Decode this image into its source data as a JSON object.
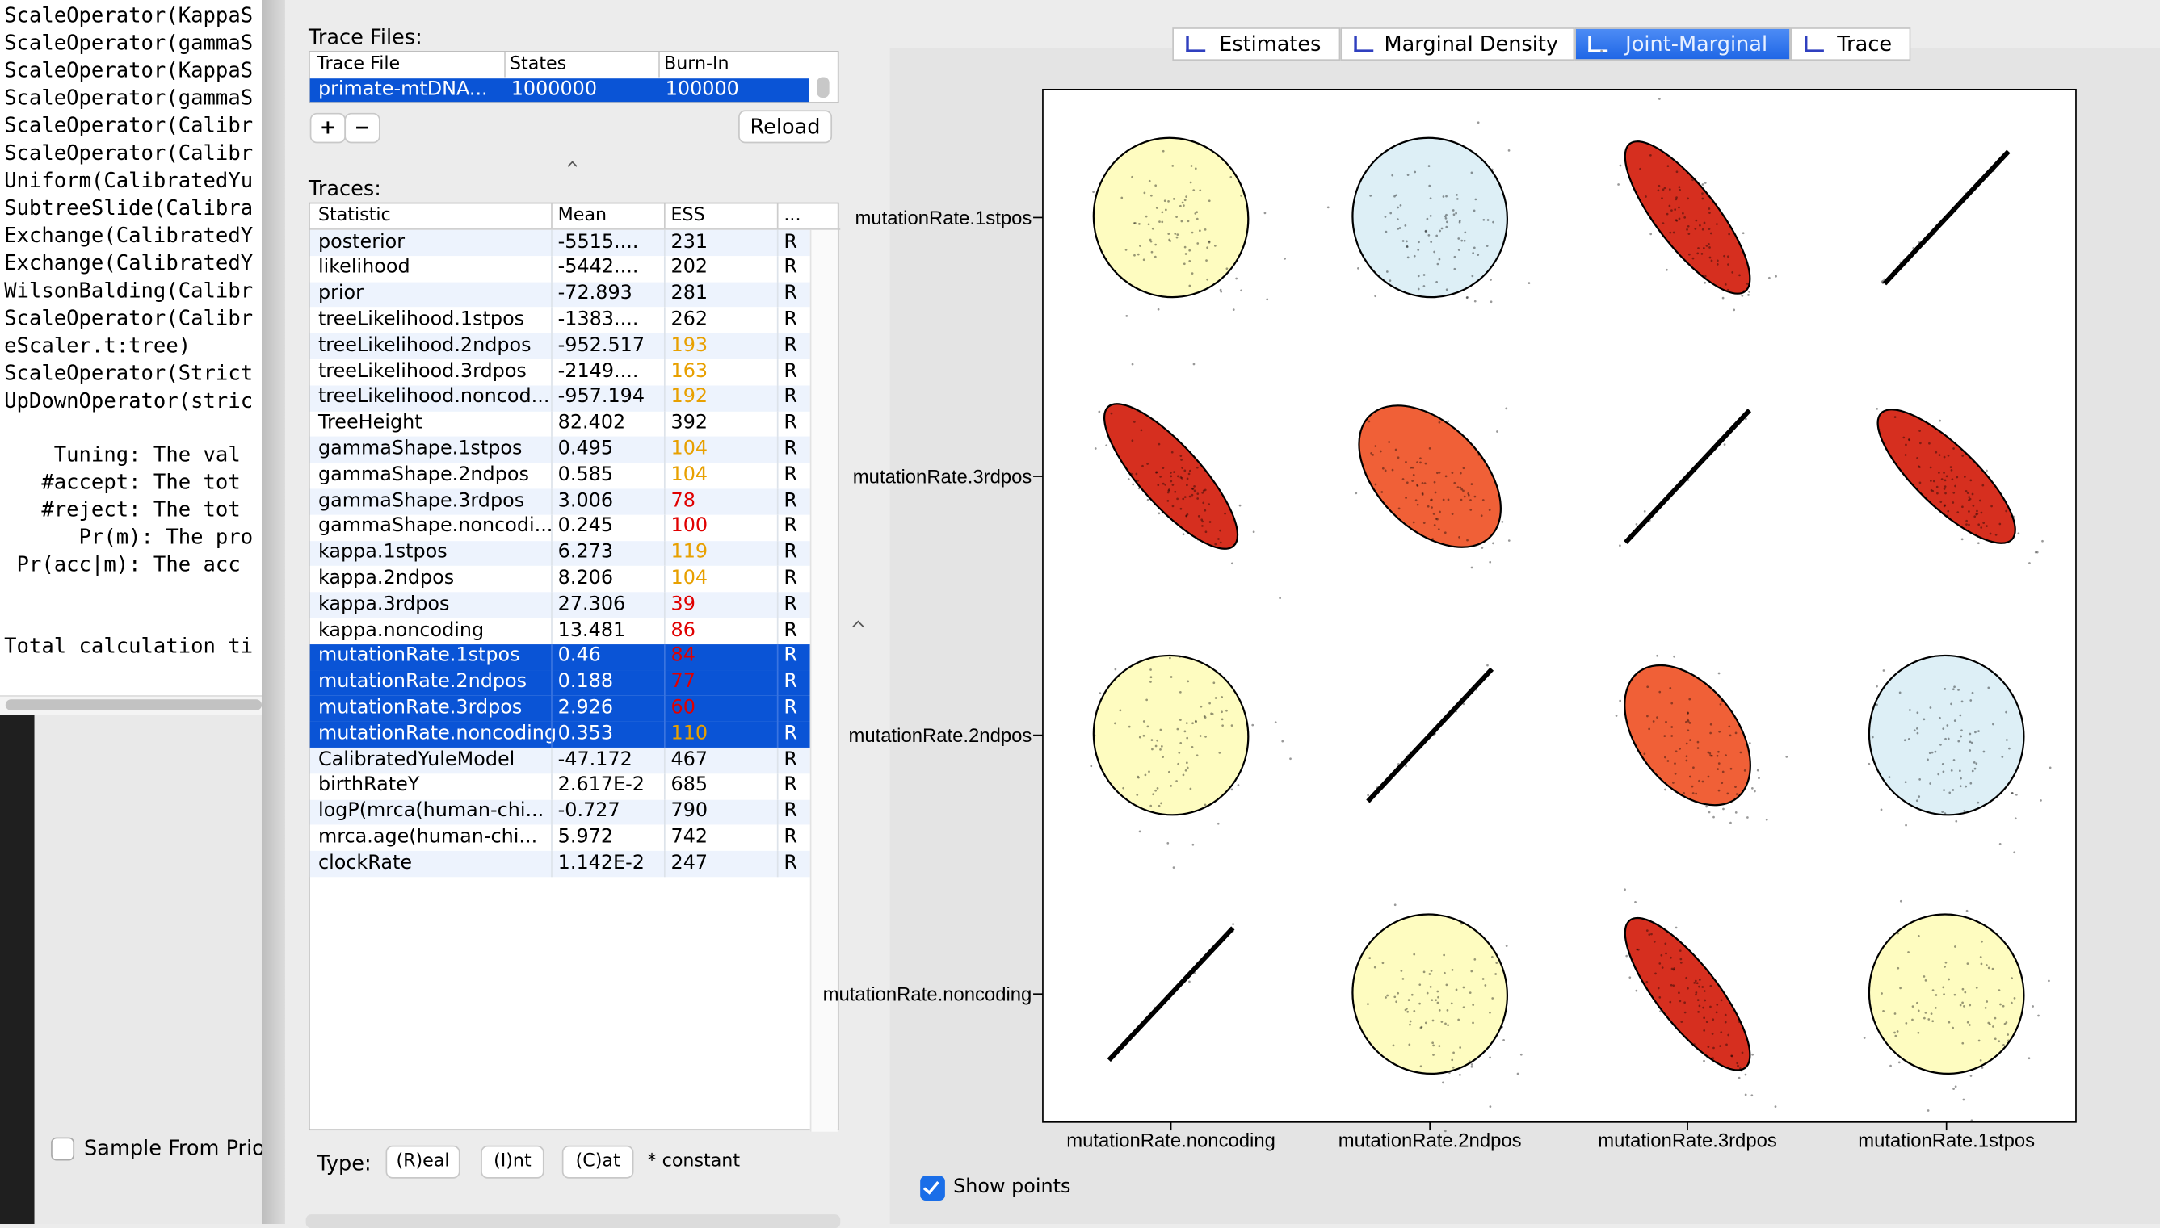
{
  "console": {
    "operators": [
      "ScaleOperator(KappaS",
      "ScaleOperator(gammaS",
      "ScaleOperator(KappaS",
      "ScaleOperator(gammaS",
      "ScaleOperator(Calibr",
      "ScaleOperator(Calibr",
      "Uniform(CalibratedYu",
      "SubtreeSlide(Calibra",
      "Exchange(CalibratedY",
      "Exchange(CalibratedY",
      "WilsonBalding(Calibr",
      "ScaleOperator(Calibr",
      "eScaler.t:tree)",
      "ScaleOperator(Strict",
      "UpDownOperator(stric"
    ],
    "legend": [
      "    Tuning: The val",
      "   #accept: The tot",
      "   #reject: The tot",
      "      Pr(m): The pro",
      " Pr(acc|m): The acc"
    ],
    "total": "Total calculation ti"
  },
  "sidebar": {
    "sample_from_prior": "Sample From Prior"
  },
  "trace_files": {
    "label": "Trace Files:",
    "columns": [
      "Trace File",
      "States",
      "Burn-In"
    ],
    "rows": [
      [
        "primate-mtDNA...",
        "1000000",
        "100000"
      ]
    ],
    "add": "+",
    "remove": "−",
    "reload": "Reload"
  },
  "traces": {
    "label": "Traces:",
    "columns": [
      "Statistic",
      "Mean",
      "ESS",
      "..."
    ],
    "rows": [
      {
        "cells": [
          "posterior",
          "-5515....",
          "231",
          "R"
        ],
        "ess_color": "#000000",
        "selected": false
      },
      {
        "cells": [
          "likelihood",
          "-5442....",
          "202",
          "R"
        ],
        "ess_color": "#000000",
        "selected": false
      },
      {
        "cells": [
          "prior",
          "-72.893",
          "281",
          "R"
        ],
        "ess_color": "#000000",
        "selected": false
      },
      {
        "cells": [
          "treeLikelihood.1stpos",
          "-1383....",
          "262",
          "R"
        ],
        "ess_color": "#000000",
        "selected": false
      },
      {
        "cells": [
          "treeLikelihood.2ndpos",
          "-952.517",
          "193",
          "R"
        ],
        "ess_color": "#e8a000",
        "selected": false
      },
      {
        "cells": [
          "treeLikelihood.3rdpos",
          "-2149....",
          "163",
          "R"
        ],
        "ess_color": "#e8a000",
        "selected": false
      },
      {
        "cells": [
          "treeLikelihood.noncod...",
          "-957.194",
          "192",
          "R"
        ],
        "ess_color": "#e8a000",
        "selected": false
      },
      {
        "cells": [
          "TreeHeight",
          "82.402",
          "392",
          "R"
        ],
        "ess_color": "#000000",
        "selected": false
      },
      {
        "cells": [
          "gammaShape.1stpos",
          "0.495",
          "104",
          "R"
        ],
        "ess_color": "#e8a000",
        "selected": false
      },
      {
        "cells": [
          "gammaShape.2ndpos",
          "0.585",
          "104",
          "R"
        ],
        "ess_color": "#e8a000",
        "selected": false
      },
      {
        "cells": [
          "gammaShape.3rdpos",
          "3.006",
          "78",
          "R"
        ],
        "ess_color": "#e00000",
        "selected": false
      },
      {
        "cells": [
          "gammaShape.noncodi...",
          "0.245",
          "100",
          "R"
        ],
        "ess_color": "#e00000",
        "selected": false
      },
      {
        "cells": [
          "kappa.1stpos",
          "6.273",
          "119",
          "R"
        ],
        "ess_color": "#e8a000",
        "selected": false
      },
      {
        "cells": [
          "kappa.2ndpos",
          "8.206",
          "104",
          "R"
        ],
        "ess_color": "#e8a000",
        "selected": false
      },
      {
        "cells": [
          "kappa.3rdpos",
          "27.306",
          "39",
          "R"
        ],
        "ess_color": "#e00000",
        "selected": false
      },
      {
        "cells": [
          "kappa.noncoding",
          "13.481",
          "86",
          "R"
        ],
        "ess_color": "#e00000",
        "selected": false
      },
      {
        "cells": [
          "mutationRate.1stpos",
          "0.46",
          "84",
          "R"
        ],
        "ess_color": "#e00000",
        "selected": true
      },
      {
        "cells": [
          "mutationRate.2ndpos",
          "0.188",
          "77",
          "R"
        ],
        "ess_color": "#e00000",
        "selected": true
      },
      {
        "cells": [
          "mutationRate.3rdpos",
          "2.926",
          "60",
          "R"
        ],
        "ess_color": "#e00000",
        "selected": true
      },
      {
        "cells": [
          "mutationRate.noncoding",
          "0.353",
          "110",
          "R"
        ],
        "ess_color": "#e8a000",
        "selected": true
      },
      {
        "cells": [
          "CalibratedYuleModel",
          "-47.172",
          "467",
          "R"
        ],
        "ess_color": "#000000",
        "selected": false
      },
      {
        "cells": [
          "birthRateY",
          "2.617E-2",
          "685",
          "R"
        ],
        "ess_color": "#000000",
        "selected": false
      },
      {
        "cells": [
          "logP(mrca(human-chi...",
          "-0.727",
          "790",
          "R"
        ],
        "ess_color": "#000000",
        "selected": false
      },
      {
        "cells": [
          "mrca.age(human-chi...",
          "5.972",
          "742",
          "R"
        ],
        "ess_color": "#000000",
        "selected": false
      },
      {
        "cells": [
          "clockRate",
          "1.142E-2",
          "247",
          "R"
        ],
        "ess_color": "#000000",
        "selected": false
      }
    ]
  },
  "type_bar": {
    "label": "Type:",
    "buttons": [
      "(R)eal",
      "(I)nt",
      "(C)at"
    ],
    "note": "* constant"
  },
  "tabs": {
    "items": [
      "Estimates",
      "Marginal Density",
      "Joint-Marginal",
      "Trace"
    ],
    "active": 2
  },
  "plot": {
    "y_labels": [
      "mutationRate.1stpos",
      "mutationRate.3rdpos",
      "mutationRate.2ndpos",
      "mutationRate.noncoding"
    ],
    "x_labels": [
      "mutationRate.noncoding",
      "mutationRate.2ndpos",
      "mutationRate.3rdpos",
      "mutationRate.1stpos"
    ]
  },
  "show_points": {
    "label": "Show points",
    "checked": true
  }
}
